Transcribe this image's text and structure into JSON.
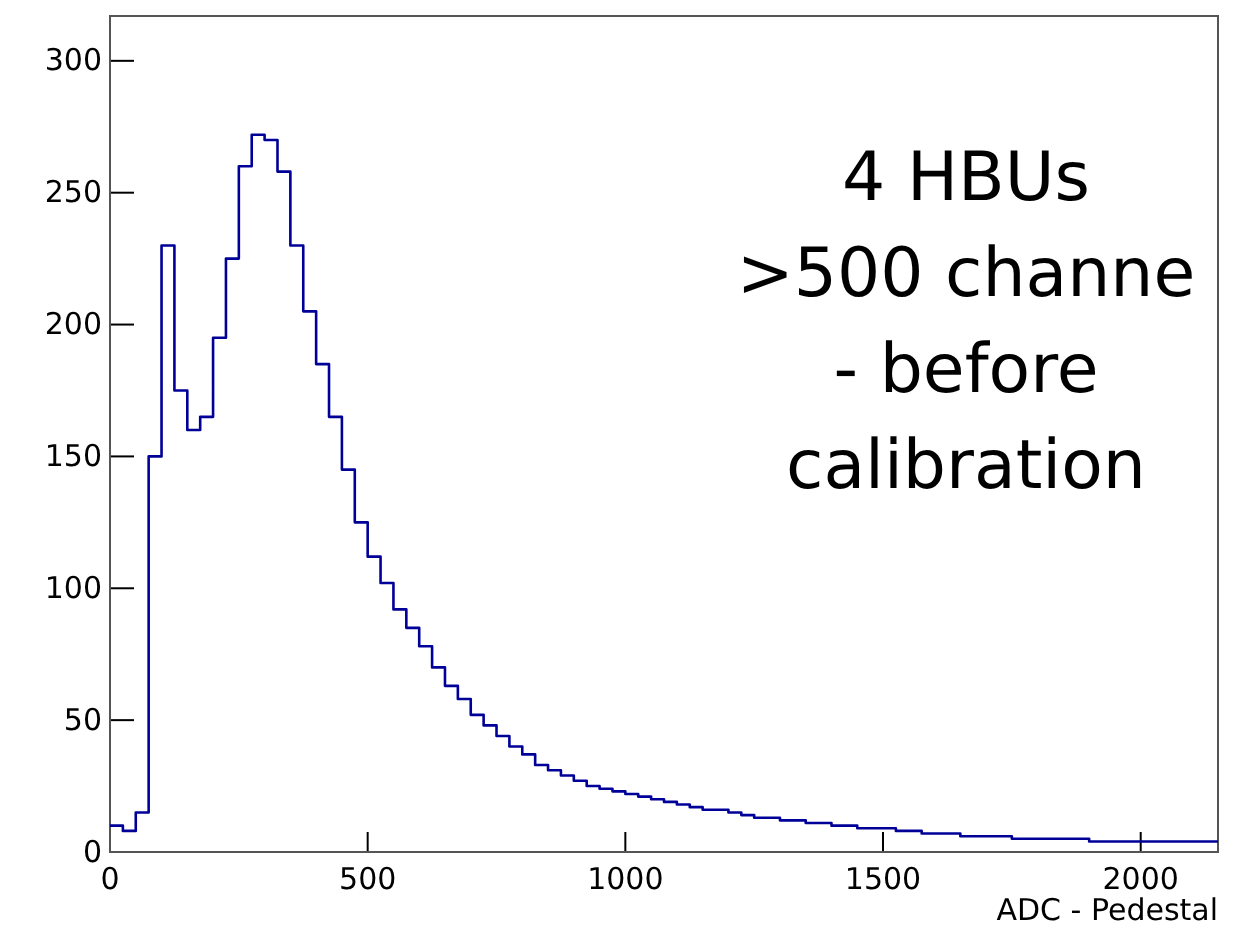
{
  "chart_data": {
    "type": "histogram",
    "xlabel": "ADC - Pedestal",
    "color": "#000099",
    "bins": [
      0,
      25,
      50,
      75,
      100,
      125,
      150,
      175,
      200,
      225,
      250,
      275,
      300,
      325,
      350,
      375,
      400,
      425,
      450,
      475,
      500,
      525,
      550,
      575,
      600,
      625,
      650,
      675,
      700,
      725,
      750,
      775,
      800,
      825,
      850,
      875,
      900,
      925,
      950,
      975,
      1000,
      1025,
      1050,
      1075,
      1100,
      1125,
      1150,
      1175,
      1200,
      1225,
      1250,
      1275,
      1300,
      1325,
      1350,
      1375,
      1400,
      1425,
      1450,
      1475,
      1500,
      1525,
      1550,
      1575,
      1600,
      1625,
      1650,
      1675,
      1700,
      1725,
      1750,
      1775,
      1800,
      1825,
      1850,
      1875,
      1900,
      1925,
      1950,
      1975,
      2000,
      2025,
      2050,
      2075,
      2100,
      2125,
      2150
    ],
    "values": [
      10,
      8,
      15,
      150,
      230,
      175,
      160,
      165,
      195,
      225,
      260,
      272,
      270,
      258,
      230,
      205,
      185,
      165,
      145,
      125,
      112,
      102,
      92,
      85,
      78,
      70,
      63,
      58,
      52,
      48,
      44,
      40,
      37,
      33,
      31,
      29,
      27,
      25,
      24,
      23,
      22,
      21,
      20,
      19,
      18,
      17,
      16,
      16,
      15,
      14,
      13,
      13,
      12,
      12,
      11,
      11,
      10,
      10,
      9,
      9,
      9,
      8,
      8,
      7,
      7,
      7,
      6,
      6,
      6,
      6,
      5,
      5,
      5,
      5,
      5,
      5,
      4,
      4,
      4,
      4,
      4,
      4,
      4,
      4,
      4,
      4
    ],
    "xlim": [
      0,
      2150
    ],
    "ylim": [
      0,
      317
    ],
    "xticks": [
      0,
      500,
      1000,
      1500,
      2000
    ],
    "yticks": [
      0,
      50,
      100,
      150,
      200,
      250,
      300
    ],
    "annotations": [
      "4 HBUs",
      ">500 channe",
      "- before",
      "calibration"
    ]
  }
}
